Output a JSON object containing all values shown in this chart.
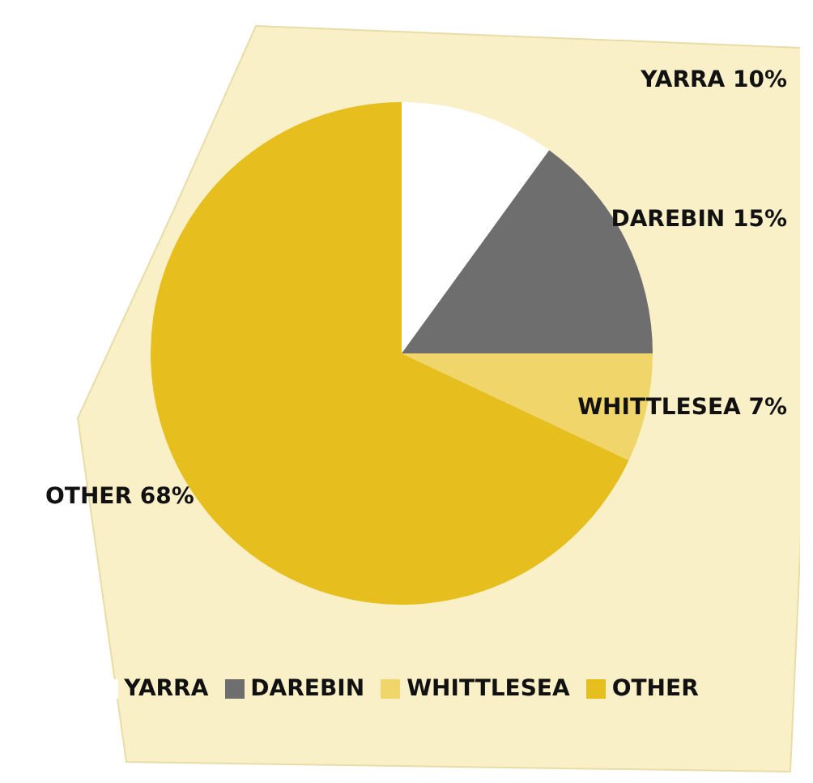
{
  "chart_data": {
    "type": "pie",
    "categories": [
      "YARRA",
      "DAREBIN",
      "WHITTLESEA",
      "OTHER"
    ],
    "values": [
      10,
      15,
      7,
      68
    ],
    "value_labels": [
      "10%",
      "15%",
      "7%",
      "68%"
    ],
    "colors": [
      "#ffffff",
      "#6e6e6e",
      "#f0d66a",
      "#e6bf1e"
    ],
    "legend": "bottom"
  }
}
